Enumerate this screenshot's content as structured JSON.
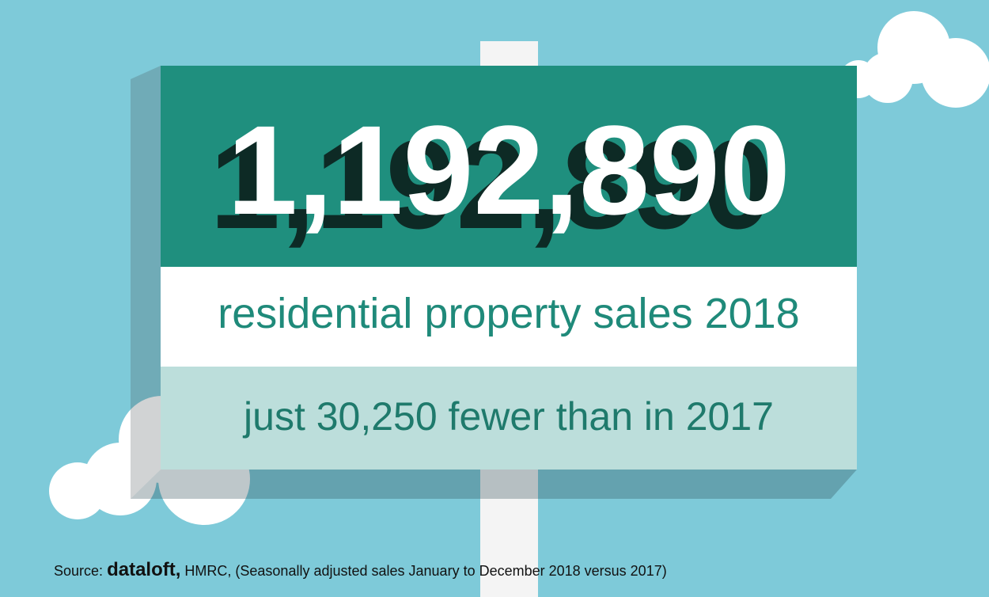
{
  "headline": {
    "number": "1,192,890",
    "subtitle": "residential property sales 2018",
    "note": "just 30,250 fewer than in 2017"
  },
  "source": {
    "prefix": "Source:",
    "brand": "dataloft,",
    "text": "HMRC, (Seasonally adjusted sales January to December 2018 versus 2017)"
  }
}
